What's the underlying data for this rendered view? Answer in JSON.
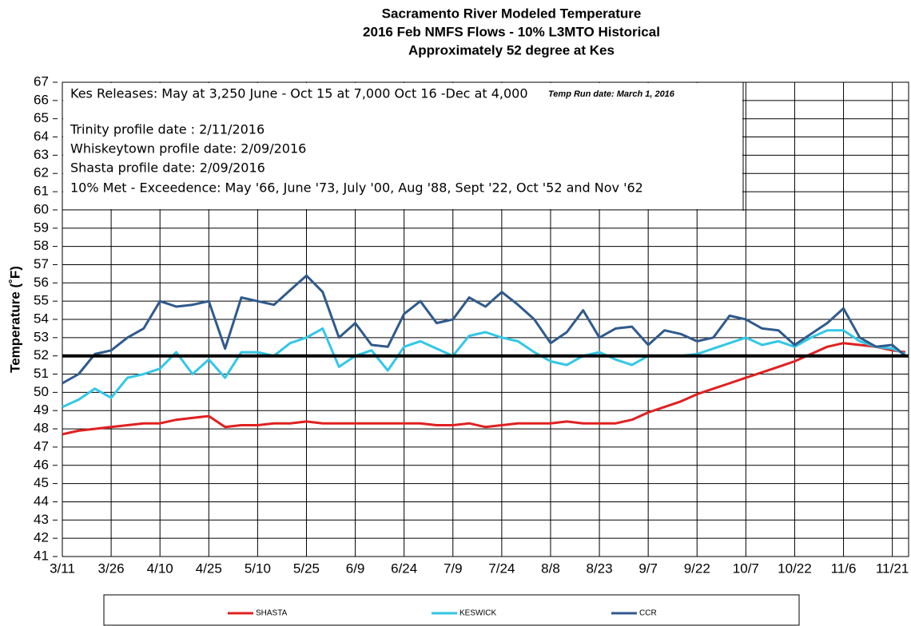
{
  "chart_data": {
    "type": "line",
    "title": [
      "Sacramento River Modeled Temperature",
      "2016 Feb NMFS Flows - 10% L3MTO Historical",
      "Approximately 52 degree at Kes"
    ],
    "y_label": "Temperature (˚F)",
    "annotations": [
      "Kes Releases:  May at 3,250 June - Oct 15  at 7,000 Oct 16 -Dec at 4,000",
      "Temp Run date: March 1, 2016",
      "Trinity profile date : 2/11/2016",
      "Whiskeytown profile date: 2/09/2016",
      "Shasta profile date: 2/09/2016",
      "10% Met - Exceedence: May '66, June  '73, July '00, Aug '88, Sept '22, Oct '52 and Nov '62"
    ],
    "x": [
      "3/11",
      "3/16",
      "3/21",
      "3/26",
      "3/31",
      "4/5",
      "4/10",
      "4/15",
      "4/20",
      "4/25",
      "4/30",
      "5/5",
      "5/10",
      "5/15",
      "5/20",
      "5/25",
      "5/30",
      "6/4",
      "6/9",
      "6/14",
      "6/19",
      "6/24",
      "6/29",
      "7/4",
      "7/9",
      "7/14",
      "7/19",
      "7/24",
      "7/29",
      "8/3",
      "8/8",
      "8/13",
      "8/18",
      "8/23",
      "8/28",
      "9/2",
      "9/7",
      "9/12",
      "9/17",
      "9/22",
      "9/27",
      "10/2",
      "10/7",
      "10/12",
      "10/17",
      "10/22",
      "10/27",
      "11/1",
      "11/6",
      "11/11",
      "11/16",
      "11/21",
      "11/25"
    ],
    "xlim": [
      "3/11",
      "11/26"
    ],
    "xticks": [
      "3/11",
      "3/26",
      "4/10",
      "4/25",
      "5/10",
      "5/25",
      "6/9",
      "6/24",
      "7/9",
      "7/24",
      "8/8",
      "8/23",
      "9/7",
      "9/22",
      "10/7",
      "10/22",
      "11/6",
      "11/21"
    ],
    "ylim": [
      41,
      67
    ],
    "yticks": [
      41,
      42,
      43,
      44,
      45,
      46,
      47,
      48,
      49,
      50,
      51,
      52,
      53,
      54,
      55,
      56,
      57,
      58,
      59,
      60,
      61,
      62,
      63,
      64,
      65,
      66,
      67
    ],
    "grid": true,
    "reference_line": {
      "value": 52,
      "color": "#000000"
    },
    "series": [
      {
        "name": "SHASTA",
        "color": "#e02020",
        "values": [
          47.7,
          47.9,
          48.0,
          48.1,
          48.2,
          48.3,
          48.3,
          48.5,
          48.6,
          48.7,
          48.1,
          48.2,
          48.2,
          48.3,
          48.3,
          48.4,
          48.3,
          48.3,
          48.3,
          48.3,
          48.3,
          48.3,
          48.3,
          48.2,
          48.2,
          48.3,
          48.1,
          48.2,
          48.3,
          48.3,
          48.3,
          48.4,
          48.3,
          48.3,
          48.3,
          48.5,
          48.9,
          49.2,
          49.5,
          49.9,
          50.2,
          50.5,
          50.8,
          51.1,
          51.4,
          51.7,
          52.1,
          52.5,
          52.7,
          52.6,
          52.5,
          52.3,
          52.2
        ]
      },
      {
        "name": "KESWICK",
        "color": "#33c7e6",
        "values": [
          49.2,
          49.6,
          50.2,
          49.7,
          50.8,
          51.0,
          51.3,
          52.2,
          51.0,
          51.8,
          50.8,
          52.2,
          52.2,
          52.0,
          52.7,
          53.0,
          53.5,
          51.4,
          52.0,
          52.3,
          51.2,
          52.5,
          52.8,
          52.4,
          52.0,
          53.1,
          53.3,
          53.0,
          52.8,
          52.2,
          51.7,
          51.5,
          52.0,
          52.2,
          51.8,
          51.5,
          52.0,
          52.0,
          52.0,
          52.1,
          52.4,
          52.7,
          53.0,
          52.6,
          52.8,
          52.5,
          53.0,
          53.4,
          53.4,
          52.8,
          52.5,
          52.4,
          52.1
        ]
      },
      {
        "name": "CCR",
        "color": "#2f5a8c",
        "values": [
          50.5,
          51.0,
          52.1,
          52.3,
          53.0,
          53.5,
          55.0,
          54.7,
          54.8,
          55.0,
          52.4,
          55.2,
          55.0,
          54.8,
          55.6,
          56.4,
          55.5,
          53.0,
          53.8,
          52.6,
          52.5,
          54.3,
          55.0,
          53.8,
          54.0,
          55.2,
          54.7,
          55.5,
          54.8,
          54.0,
          52.7,
          53.3,
          54.5,
          53.0,
          53.5,
          53.6,
          52.6,
          53.4,
          53.2,
          52.8,
          53.0,
          54.2,
          54.0,
          53.5,
          53.4,
          52.6,
          53.2,
          53.8,
          54.6,
          53.0,
          52.5,
          52.6,
          52.0
        ]
      }
    ]
  }
}
